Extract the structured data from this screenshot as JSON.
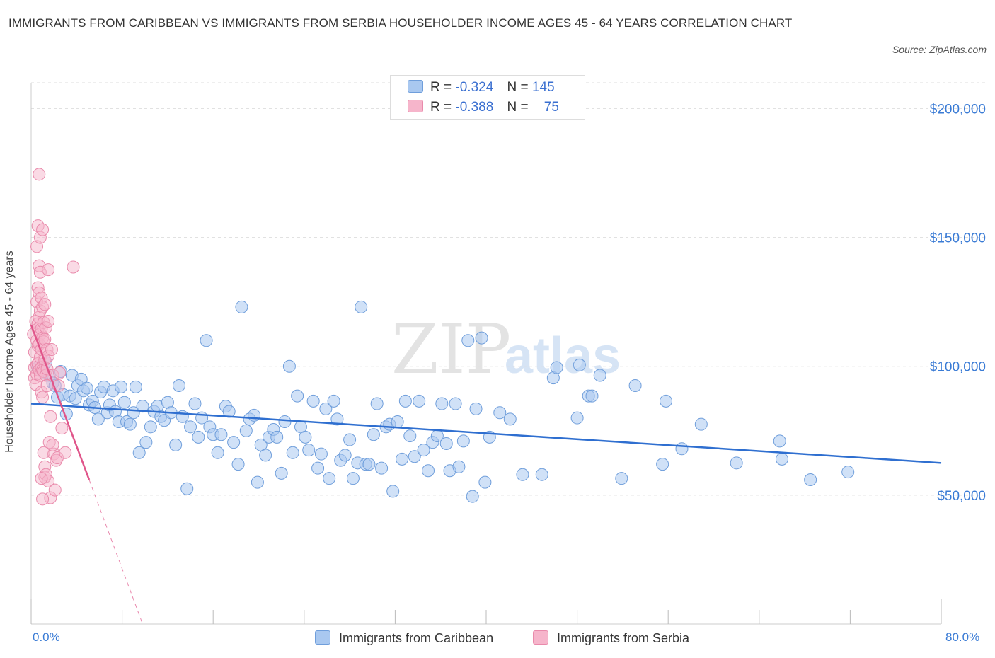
{
  "header": {
    "title": "IMMIGRANTS FROM CARIBBEAN VS IMMIGRANTS FROM SERBIA HOUSEHOLDER INCOME AGES 45 - 64 YEARS CORRELATION CHART",
    "source": "Source: ZipAtlas.com"
  },
  "watermark": {
    "zip": "ZIP",
    "atlas": "atlas"
  },
  "legend": {
    "r_label": "R =",
    "n_label": "N =",
    "caribbean": {
      "name": "Immigrants from Caribbean",
      "r": "-0.324",
      "n": "145"
    },
    "serbia": {
      "name": "Immigrants from Serbia",
      "r": "-0.388",
      "n": "75"
    }
  },
  "colors": {
    "caribbean_fill": "#a9c8f0",
    "caribbean_stroke": "#6f9edb",
    "caribbean_line": "#2f6fd0",
    "serbia_fill": "#f6b5cb",
    "serbia_stroke": "#e98aab",
    "serbia_line": "#e0558a",
    "grid": "#dddddd",
    "axis_text": "#3a7bd5"
  },
  "chart_data": {
    "type": "scatter",
    "title": "IMMIGRANTS FROM CARIBBEAN VS IMMIGRANTS FROM SERBIA HOUSEHOLDER INCOME AGES 45 - 64 YEARS CORRELATION CHART",
    "xlabel": "",
    "ylabel": "Householder Income Ages 45 - 64 years",
    "xlim": [
      0,
      80
    ],
    "ylim": [
      0,
      210000
    ],
    "x_tick_labels": [
      "0.0%",
      "80.0%"
    ],
    "y_ticks": [
      {
        "value": 50000,
        "label": "$50,000"
      },
      {
        "value": 100000,
        "label": "$100,000"
      },
      {
        "value": 150000,
        "label": "$150,000"
      },
      {
        "value": 200000,
        "label": "$200,000"
      }
    ],
    "grid": true,
    "series": [
      {
        "name": "Immigrants from Caribbean",
        "trend": {
          "x": [
            0,
            80
          ],
          "y": [
            85500,
            62500
          ]
        },
        "points": [
          [
            0.6,
            99500
          ],
          [
            0.9,
            98500
          ],
          [
            1.1,
            97500
          ],
          [
            1.3,
            101500
          ],
          [
            1.6,
            96500
          ],
          [
            1.9,
            93500
          ],
          [
            2.1,
            92500
          ],
          [
            2.3,
            88000
          ],
          [
            2.6,
            98000
          ],
          [
            2.8,
            89000
          ],
          [
            3.1,
            81500
          ],
          [
            3.4,
            88500
          ],
          [
            3.6,
            96500
          ],
          [
            3.9,
            87500
          ],
          [
            4.1,
            92500
          ],
          [
            4.4,
            95000
          ],
          [
            4.6,
            90500
          ],
          [
            4.9,
            91500
          ],
          [
            5.1,
            85000
          ],
          [
            5.4,
            86500
          ],
          [
            5.6,
            84000
          ],
          [
            5.9,
            79500
          ],
          [
            6.1,
            90000
          ],
          [
            6.4,
            92000
          ],
          [
            6.7,
            82000
          ],
          [
            6.9,
            85000
          ],
          [
            7.2,
            90500
          ],
          [
            7.4,
            82500
          ],
          [
            7.7,
            78500
          ],
          [
            7.9,
            92000
          ],
          [
            8.2,
            86000
          ],
          [
            8.4,
            78500
          ],
          [
            8.7,
            77500
          ],
          [
            9.0,
            82000
          ],
          [
            9.2,
            92000
          ],
          [
            9.5,
            66500
          ],
          [
            9.8,
            84500
          ],
          [
            10.1,
            70500
          ],
          [
            10.5,
            76500
          ],
          [
            10.8,
            82500
          ],
          [
            11.1,
            84500
          ],
          [
            11.4,
            80500
          ],
          [
            11.7,
            79000
          ],
          [
            12.0,
            86000
          ],
          [
            12.3,
            82000
          ],
          [
            12.7,
            69500
          ],
          [
            13.0,
            92500
          ],
          [
            13.3,
            80500
          ],
          [
            13.7,
            52500
          ],
          [
            14.0,
            76500
          ],
          [
            14.4,
            85500
          ],
          [
            14.7,
            72500
          ],
          [
            15.0,
            80000
          ],
          [
            15.4,
            110000
          ],
          [
            15.7,
            76500
          ],
          [
            16.0,
            73500
          ],
          [
            16.4,
            66500
          ],
          [
            16.7,
            73500
          ],
          [
            17.1,
            84500
          ],
          [
            17.4,
            82500
          ],
          [
            17.8,
            70500
          ],
          [
            18.2,
            62000
          ],
          [
            18.5,
            123000
          ],
          [
            18.9,
            75000
          ],
          [
            19.2,
            79500
          ],
          [
            19.6,
            81000
          ],
          [
            19.9,
            55000
          ],
          [
            20.2,
            69500
          ],
          [
            20.6,
            65500
          ],
          [
            20.9,
            72500
          ],
          [
            21.3,
            75500
          ],
          [
            21.6,
            72500
          ],
          [
            22.0,
            58500
          ],
          [
            22.3,
            78500
          ],
          [
            22.7,
            100000
          ],
          [
            23.0,
            66500
          ],
          [
            23.4,
            88500
          ],
          [
            23.7,
            76500
          ],
          [
            24.1,
            72500
          ],
          [
            24.4,
            67500
          ],
          [
            24.8,
            86500
          ],
          [
            25.2,
            60500
          ],
          [
            25.5,
            66000
          ],
          [
            25.9,
            83500
          ],
          [
            26.2,
            56500
          ],
          [
            26.6,
            86500
          ],
          [
            26.9,
            79500
          ],
          [
            27.2,
            63500
          ],
          [
            27.6,
            65500
          ],
          [
            28.0,
            71500
          ],
          [
            28.3,
            56500
          ],
          [
            28.7,
            62500
          ],
          [
            29.0,
            123000
          ],
          [
            29.4,
            62000
          ],
          [
            29.7,
            62000
          ],
          [
            30.1,
            73500
          ],
          [
            30.4,
            85500
          ],
          [
            30.8,
            60500
          ],
          [
            31.2,
            76500
          ],
          [
            31.5,
            77500
          ],
          [
            31.8,
            51500
          ],
          [
            32.2,
            78500
          ],
          [
            32.6,
            64000
          ],
          [
            32.9,
            86500
          ],
          [
            33.3,
            73000
          ],
          [
            33.7,
            65000
          ],
          [
            34.1,
            86500
          ],
          [
            34.5,
            67500
          ],
          [
            34.9,
            59500
          ],
          [
            35.3,
            70500
          ],
          [
            35.7,
            73000
          ],
          [
            36.1,
            85500
          ],
          [
            36.5,
            70000
          ],
          [
            36.8,
            59500
          ],
          [
            37.3,
            85500
          ],
          [
            37.6,
            61000
          ],
          [
            38.0,
            71000
          ],
          [
            38.4,
            110000
          ],
          [
            38.8,
            49500
          ],
          [
            39.1,
            83500
          ],
          [
            39.6,
            111000
          ],
          [
            39.9,
            55000
          ],
          [
            40.3,
            72500
          ],
          [
            41.2,
            82000
          ],
          [
            42.1,
            79500
          ],
          [
            43.2,
            58000
          ],
          [
            44.9,
            58000
          ],
          [
            45.9,
            95500
          ],
          [
            46.2,
            99500
          ],
          [
            48.0,
            80000
          ],
          [
            48.2,
            100500
          ],
          [
            49.0,
            88500
          ],
          [
            49.3,
            88500
          ],
          [
            50.0,
            96500
          ],
          [
            51.9,
            56500
          ],
          [
            53.1,
            92500
          ],
          [
            55.5,
            62000
          ],
          [
            55.8,
            86500
          ],
          [
            57.2,
            68000
          ],
          [
            58.9,
            77500
          ],
          [
            62.0,
            62500
          ],
          [
            65.8,
            71000
          ],
          [
            66.0,
            64000
          ],
          [
            68.5,
            56000
          ],
          [
            71.8,
            59000
          ]
        ]
      },
      {
        "name": "Immigrants from Serbia",
        "trend": {
          "x": [
            0.0,
            5.1
          ],
          "y": [
            116000,
            56000
          ]
        },
        "trend_extension": {
          "x": [
            5.1,
            9.8
          ],
          "y": [
            56000,
            0
          ]
        },
        "points": [
          [
            0.2,
            112500
          ],
          [
            0.3,
            105500
          ],
          [
            0.3,
            99500
          ],
          [
            0.3,
            95500
          ],
          [
            0.4,
            93000
          ],
          [
            0.4,
            117500
          ],
          [
            0.5,
            125000
          ],
          [
            0.5,
            110000
          ],
          [
            0.5,
            100500
          ],
          [
            0.5,
            97000
          ],
          [
            0.5,
            146500
          ],
          [
            0.6,
            130500
          ],
          [
            0.6,
            116500
          ],
          [
            0.6,
            114500
          ],
          [
            0.6,
            108000
          ],
          [
            0.6,
            101000
          ],
          [
            0.6,
            154500
          ],
          [
            0.7,
            139000
          ],
          [
            0.7,
            128500
          ],
          [
            0.7,
            119000
          ],
          [
            0.7,
            108500
          ],
          [
            0.7,
            98500
          ],
          [
            0.7,
            174500
          ],
          [
            0.8,
            150000
          ],
          [
            0.8,
            136500
          ],
          [
            0.8,
            121500
          ],
          [
            0.8,
            112500
          ],
          [
            0.8,
            103500
          ],
          [
            0.8,
            96500
          ],
          [
            0.9,
            126500
          ],
          [
            0.9,
            114500
          ],
          [
            0.9,
            106500
          ],
          [
            0.9,
            99500
          ],
          [
            0.9,
            90000
          ],
          [
            1.0,
            153000
          ],
          [
            1.0,
            123000
          ],
          [
            1.0,
            111000
          ],
          [
            1.0,
            98500
          ],
          [
            1.0,
            88000
          ],
          [
            1.1,
            66500
          ],
          [
            1.1,
            117000
          ],
          [
            1.1,
            109500
          ],
          [
            1.1,
            98000
          ],
          [
            1.2,
            61000
          ],
          [
            1.2,
            57000
          ],
          [
            1.2,
            124000
          ],
          [
            1.2,
            110500
          ],
          [
            1.2,
            102500
          ],
          [
            1.3,
            96500
          ],
          [
            1.3,
            58000
          ],
          [
            1.3,
            115000
          ],
          [
            1.4,
            106500
          ],
          [
            1.4,
            99000
          ],
          [
            1.4,
            92500
          ],
          [
            1.5,
            55500
          ],
          [
            1.5,
            137500
          ],
          [
            1.5,
            117500
          ],
          [
            1.5,
            104000
          ],
          [
            1.6,
            70500
          ],
          [
            1.7,
            49000
          ],
          [
            1.7,
            80500
          ],
          [
            1.8,
            106500
          ],
          [
            1.9,
            96500
          ],
          [
            2.0,
            66000
          ],
          [
            2.1,
            52000
          ],
          [
            2.2,
            63500
          ],
          [
            2.3,
            64500
          ],
          [
            2.4,
            92500
          ],
          [
            2.7,
            76000
          ],
          [
            3.0,
            66500
          ],
          [
            1.0,
            48500
          ],
          [
            0.9,
            56500
          ],
          [
            1.9,
            69500
          ],
          [
            2.5,
            97500
          ],
          [
            3.7,
            138500
          ]
        ]
      }
    ]
  }
}
